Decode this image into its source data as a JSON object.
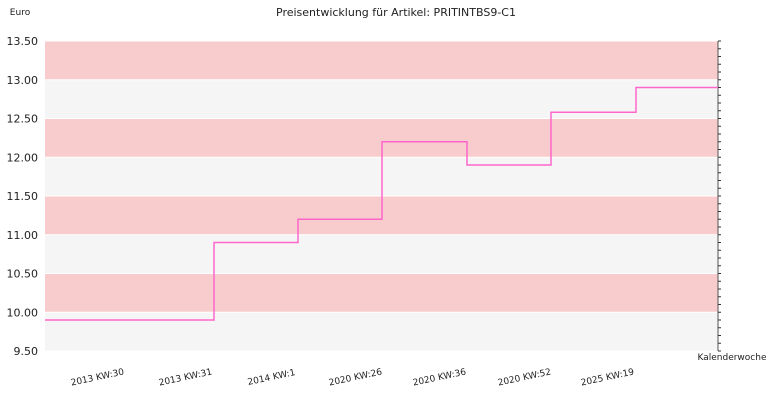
{
  "chart_data": {
    "type": "line",
    "step": true,
    "title": "Preisentwicklung für Artikel: PRITINTBS9-C1",
    "ylabel": "Euro",
    "xlabel": "Kalenderwoche",
    "ylim": [
      9.5,
      13.5
    ],
    "yticks": [
      "9.50",
      "10.00",
      "10.50",
      "11.00",
      "11.50",
      "12.00",
      "12.50",
      "13.00",
      "13.50"
    ],
    "categories": [
      "2013 KW:30",
      "2013 KW:31",
      "2014 KW:1",
      "2020 KW:26",
      "2020 KW:36",
      "2020 KW:52",
      "2025 KW:19"
    ],
    "series": [
      {
        "values": [
          9.9,
          10.9,
          11.2,
          12.2,
          11.9,
          12.58,
          12.9
        ]
      }
    ],
    "colors": {
      "line": "#ff66cc",
      "band_pink": "#f8cccc",
      "band_light": "#f5f5f5",
      "grid": "#ffffff"
    },
    "grid": true,
    "legend": "none"
  }
}
